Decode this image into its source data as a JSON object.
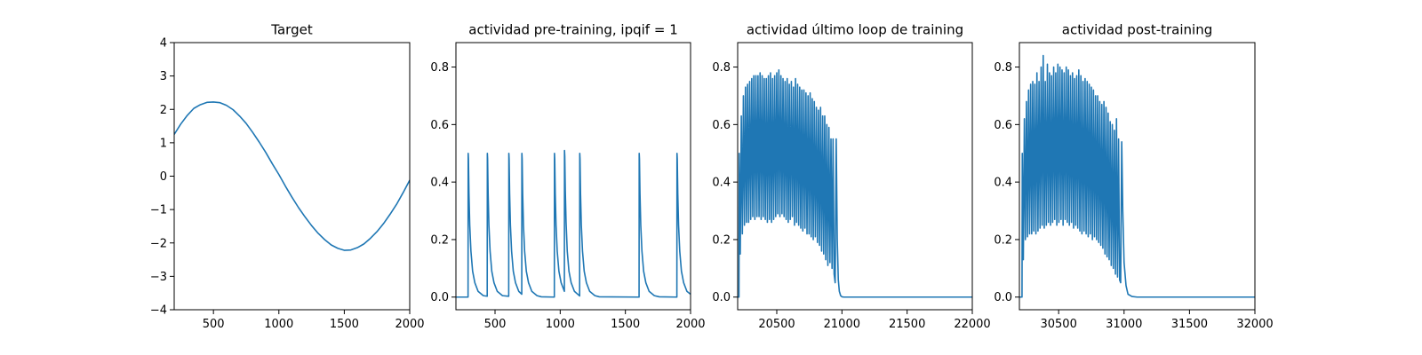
{
  "colors": {
    "line": "#1f77b4",
    "axis": "#000000",
    "background": "#ffffff"
  },
  "chart_data": [
    {
      "type": "line",
      "title": "Target",
      "xlim": [
        200,
        2000
      ],
      "ylim": [
        -4,
        4
      ],
      "xticks": [
        500,
        1000,
        1500,
        2000
      ],
      "yticks": [
        -4,
        -3,
        -2,
        -1,
        0,
        1,
        2,
        3,
        4
      ],
      "xtick_labels": [
        "500",
        "1000",
        "1500",
        "2000"
      ],
      "ytick_labels": [
        "−4",
        "−3",
        "−2",
        "−1",
        "0",
        "1",
        "2",
        "3",
        "4"
      ],
      "series": [
        {
          "x": [
            200,
            250,
            300,
            350,
            400,
            450,
            500,
            550,
            600,
            650,
            700,
            750,
            800,
            850,
            900,
            950,
            1000,
            1050,
            1100,
            1150,
            1200,
            1250,
            1300,
            1350,
            1400,
            1450,
            1500,
            1550,
            1600,
            1650,
            1700,
            1750,
            1800,
            1850,
            1900,
            1950,
            2000
          ],
          "y": [
            1.25,
            1.56,
            1.82,
            2.03,
            2.14,
            2.21,
            2.22,
            2.2,
            2.12,
            1.99,
            1.8,
            1.58,
            1.31,
            1.02,
            0.71,
            0.37,
            0.05,
            -0.3,
            -0.63,
            -0.94,
            -1.22,
            -1.48,
            -1.71,
            -1.9,
            -2.06,
            -2.16,
            -2.22,
            -2.21,
            -2.14,
            -2.03,
            -1.86,
            -1.66,
            -1.42,
            -1.14,
            -0.84,
            -0.49,
            -0.12
          ]
        }
      ]
    },
    {
      "type": "line",
      "title": "actividad pre-training, ipqif = 1",
      "xlim": [
        200,
        2000
      ],
      "ylim": [
        -0.044,
        0.885
      ],
      "xticks": [
        500,
        1000,
        1500,
        2000
      ],
      "yticks": [
        0.0,
        0.2,
        0.4,
        0.6,
        0.8
      ],
      "xtick_labels": [
        "500",
        "1000",
        "1500",
        "2000"
      ],
      "ytick_labels": [
        "0.0",
        "0.2",
        "0.4",
        "0.6",
        "0.8"
      ],
      "series": [
        {
          "x": [
            200,
            293,
            294,
            296,
            300,
            306,
            315,
            328,
            345,
            370,
            410,
            440,
            441,
            443,
            447,
            453,
            462,
            475,
            492,
            517,
            557,
            605,
            606,
            608,
            612,
            618,
            627,
            640,
            657,
            682,
            705,
            706,
            708,
            712,
            718,
            727,
            740,
            757,
            782,
            822,
            855,
            955,
            956,
            958,
            962,
            968,
            977,
            990,
            1007,
            1032,
            1033,
            1035,
            1039,
            1045,
            1054,
            1067,
            1084,
            1109,
            1149,
            1150,
            1152,
            1156,
            1162,
            1171,
            1184,
            1201,
            1226,
            1266,
            1300,
            1605,
            1606,
            1608,
            1612,
            1618,
            1627,
            1640,
            1657,
            1682,
            1722,
            1760,
            1895,
            1896,
            1898,
            1902,
            1908,
            1917,
            1930,
            1947,
            1972,
            2000
          ],
          "y": [
            0.0,
            0.0,
            0.5,
            0.48,
            0.36,
            0.25,
            0.16,
            0.09,
            0.05,
            0.02,
            0.005,
            0.003,
            0.5,
            0.48,
            0.36,
            0.25,
            0.16,
            0.09,
            0.05,
            0.02,
            0.005,
            0.003,
            0.5,
            0.48,
            0.36,
            0.25,
            0.16,
            0.09,
            0.05,
            0.02,
            0.01,
            0.5,
            0.48,
            0.36,
            0.25,
            0.16,
            0.09,
            0.05,
            0.02,
            0.005,
            0.001,
            0.0,
            0.5,
            0.48,
            0.36,
            0.25,
            0.16,
            0.09,
            0.05,
            0.02,
            0.51,
            0.49,
            0.37,
            0.26,
            0.16,
            0.09,
            0.05,
            0.02,
            0.004,
            0.5,
            0.48,
            0.36,
            0.25,
            0.16,
            0.09,
            0.05,
            0.02,
            0.005,
            0.001,
            0.0,
            0.5,
            0.48,
            0.36,
            0.25,
            0.16,
            0.09,
            0.05,
            0.02,
            0.005,
            0.001,
            0.0,
            0.5,
            0.48,
            0.36,
            0.25,
            0.16,
            0.09,
            0.05,
            0.02,
            0.01
          ]
        }
      ]
    },
    {
      "type": "line",
      "title": "actividad último loop de training",
      "xlim": [
        20200,
        22000
      ],
      "ylim": [
        -0.044,
        0.885
      ],
      "xticks": [
        20500,
        21000,
        21500,
        22000
      ],
      "yticks": [
        0.0,
        0.2,
        0.4,
        0.6,
        0.8
      ],
      "xtick_labels": [
        "20500",
        "21000",
        "21500",
        "22000"
      ],
      "ytick_labels": [
        "0.0",
        "0.2",
        "0.4",
        "0.6",
        "0.8"
      ],
      "series": [
        {
          "x": [
            20200,
            20210,
            20212,
            20220,
            20228,
            20236,
            20244,
            20252,
            20260,
            20268,
            20276,
            20284,
            20292,
            20300,
            20308,
            20316,
            20324,
            20332,
            20340,
            20348,
            20356,
            20364,
            20372,
            20380,
            20388,
            20396,
            20404,
            20412,
            20420,
            20428,
            20436,
            20444,
            20452,
            20460,
            20468,
            20476,
            20484,
            20492,
            20500,
            20508,
            20516,
            20524,
            20532,
            20540,
            20548,
            20556,
            20564,
            20572,
            20580,
            20588,
            20596,
            20604,
            20612,
            20620,
            20628,
            20636,
            20644,
            20652,
            20660,
            20668,
            20676,
            20684,
            20692,
            20700,
            20708,
            20716,
            20724,
            20732,
            20740,
            20748,
            20756,
            20764,
            20772,
            20780,
            20788,
            20796,
            20804,
            20812,
            20820,
            20828,
            20836,
            20844,
            20852,
            20860,
            20868,
            20876,
            20884,
            20892,
            20900,
            20908,
            20916,
            20924,
            20932,
            20940,
            20948,
            20956,
            20964,
            20972,
            20980,
            20990,
            21000,
            21015,
            21030,
            21060,
            21100,
            21200,
            22000
          ],
          "y": [
            0.0,
            0.0,
            0.5,
            0.15,
            0.63,
            0.22,
            0.7,
            0.25,
            0.73,
            0.26,
            0.74,
            0.26,
            0.75,
            0.27,
            0.76,
            0.28,
            0.77,
            0.27,
            0.77,
            0.28,
            0.77,
            0.28,
            0.78,
            0.27,
            0.77,
            0.28,
            0.76,
            0.27,
            0.76,
            0.26,
            0.77,
            0.27,
            0.78,
            0.26,
            0.76,
            0.27,
            0.77,
            0.28,
            0.78,
            0.29,
            0.79,
            0.28,
            0.77,
            0.29,
            0.76,
            0.28,
            0.75,
            0.27,
            0.76,
            0.26,
            0.74,
            0.27,
            0.75,
            0.28,
            0.73,
            0.25,
            0.76,
            0.26,
            0.74,
            0.25,
            0.73,
            0.24,
            0.72,
            0.23,
            0.72,
            0.24,
            0.71,
            0.22,
            0.7,
            0.22,
            0.71,
            0.21,
            0.69,
            0.2,
            0.68,
            0.21,
            0.66,
            0.19,
            0.65,
            0.18,
            0.66,
            0.16,
            0.63,
            0.15,
            0.63,
            0.13,
            0.6,
            0.11,
            0.59,
            0.12,
            0.55,
            0.1,
            0.55,
            0.08,
            0.05,
            0.55,
            0.2,
            0.06,
            0.02,
            0.005,
            0.001,
            0.0,
            0.0,
            0.0,
            0.0,
            0.0,
            0.0
          ]
        }
      ]
    },
    {
      "type": "line",
      "title": "actividad post-training",
      "xlim": [
        30200,
        32000
      ],
      "ylim": [
        -0.044,
        0.885
      ],
      "xticks": [
        30500,
        31000,
        31500,
        32000
      ],
      "yticks": [
        0.0,
        0.2,
        0.4,
        0.6,
        0.8
      ],
      "xtick_labels": [
        "30500",
        "31000",
        "31500",
        "32000"
      ],
      "ytick_labels": [
        "0.0",
        "0.2",
        "0.4",
        "0.6",
        "0.8"
      ],
      "series": [
        {
          "x": [
            30200,
            30220,
            30222,
            30230,
            30238,
            30246,
            30254,
            30262,
            30270,
            30278,
            30286,
            30294,
            30302,
            30310,
            30318,
            30326,
            30334,
            30342,
            30350,
            30358,
            30366,
            30374,
            30382,
            30390,
            30398,
            30406,
            30414,
            30422,
            30430,
            30438,
            30446,
            30454,
            30462,
            30470,
            30478,
            30486,
            30494,
            30502,
            30510,
            30518,
            30526,
            30534,
            30542,
            30550,
            30558,
            30566,
            30574,
            30582,
            30590,
            30598,
            30606,
            30614,
            30622,
            30630,
            30638,
            30646,
            30654,
            30662,
            30670,
            30678,
            30686,
            30694,
            30702,
            30710,
            30718,
            30726,
            30734,
            30742,
            30750,
            30758,
            30766,
            30774,
            30782,
            30790,
            30798,
            30806,
            30814,
            30822,
            30830,
            30838,
            30846,
            30854,
            30862,
            30870,
            30878,
            30886,
            30894,
            30902,
            30910,
            30918,
            30926,
            30934,
            30942,
            30950,
            30958,
            30966,
            30974,
            30982,
            30990,
            31000,
            31015,
            31030,
            31060,
            31100,
            31200,
            32000
          ],
          "y": [
            0.0,
            0.0,
            0.5,
            0.13,
            0.62,
            0.2,
            0.68,
            0.21,
            0.72,
            0.22,
            0.74,
            0.22,
            0.75,
            0.23,
            0.74,
            0.22,
            0.78,
            0.23,
            0.75,
            0.24,
            0.8,
            0.25,
            0.84,
            0.24,
            0.75,
            0.25,
            0.81,
            0.26,
            0.78,
            0.25,
            0.77,
            0.26,
            0.8,
            0.27,
            0.78,
            0.25,
            0.81,
            0.26,
            0.8,
            0.27,
            0.79,
            0.25,
            0.78,
            0.27,
            0.8,
            0.26,
            0.79,
            0.25,
            0.77,
            0.26,
            0.78,
            0.24,
            0.76,
            0.25,
            0.77,
            0.24,
            0.79,
            0.23,
            0.77,
            0.22,
            0.75,
            0.23,
            0.76,
            0.22,
            0.75,
            0.21,
            0.74,
            0.22,
            0.73,
            0.2,
            0.72,
            0.21,
            0.7,
            0.2,
            0.7,
            0.19,
            0.68,
            0.18,
            0.67,
            0.17,
            0.68,
            0.15,
            0.66,
            0.14,
            0.64,
            0.13,
            0.61,
            0.11,
            0.6,
            0.1,
            0.58,
            0.08,
            0.62,
            0.07,
            0.55,
            0.06,
            0.05,
            0.54,
            0.3,
            0.12,
            0.04,
            0.01,
            0.002,
            0.0,
            0.0,
            0.0
          ]
        }
      ]
    }
  ]
}
